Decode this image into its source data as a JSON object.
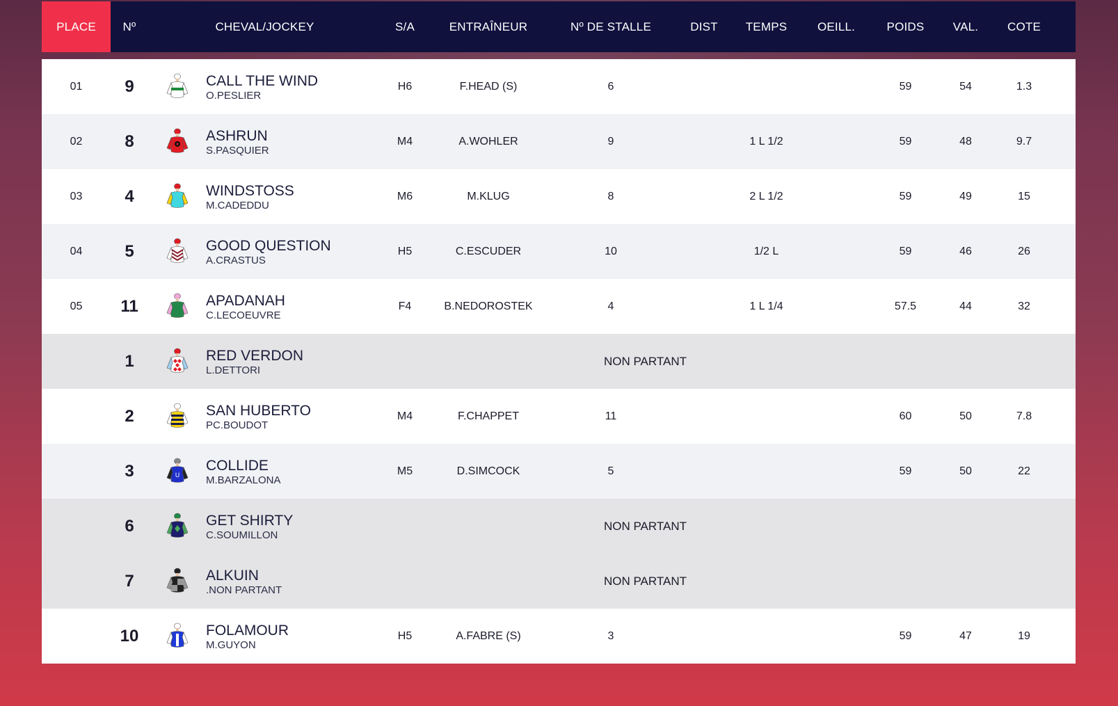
{
  "headers": {
    "place": "PLACE",
    "num": "Nº",
    "horse": "CHEVAL/JOCKEY",
    "sa": "S/A",
    "trainer": "ENTRAÎNEUR",
    "stall": "Nº DE STALLE",
    "dist": "DIST",
    "temps": "TEMPS",
    "oeill": "OEILL.",
    "poids": "POIDS",
    "val": "VAL.",
    "cote": "COTE"
  },
  "colors": {
    "header_bg": "#10113d",
    "place_accent": "#f0304a",
    "non_partant_bg": "#e4e4e6"
  },
  "rows": [
    {
      "place": "01",
      "num": "9",
      "horse": "CALL THE WIND",
      "jockey": "O.PESLIER",
      "sa": "H6",
      "trainer": "F.HEAD (S)",
      "stall": "6",
      "temps": "",
      "poids": "59",
      "val": "54",
      "cote": "1.3",
      "silk": "white-green-sash"
    },
    {
      "place": "02",
      "num": "8",
      "horse": "ASHRUN",
      "jockey": "S.PASQUIER",
      "sa": "M4",
      "trainer": "A.WOHLER",
      "stall": "9",
      "temps": "1 L 1/2",
      "poids": "59",
      "val": "48",
      "cote": "9.7",
      "silk": "red-black-dots"
    },
    {
      "place": "03",
      "num": "4",
      "horse": "WINDSTOSS",
      "jockey": "M.CADEDDU",
      "sa": "M6",
      "trainer": "M.KLUG",
      "stall": "8",
      "temps": "2 L 1/2",
      "poids": "59",
      "val": "49",
      "cote": "15",
      "silk": "cyan-yellow"
    },
    {
      "place": "04",
      "num": "5",
      "horse": "GOOD QUESTION",
      "jockey": "A.CRASTUS",
      "sa": "H5",
      "trainer": "C.ESCUDER",
      "stall": "10",
      "temps": "1/2 L",
      "poids": "59",
      "val": "46",
      "cote": "26",
      "silk": "maroon-chevrons"
    },
    {
      "place": "05",
      "num": "11",
      "horse": "APADANAH",
      "jockey": "C.LECOEUVRE",
      "sa": "F4",
      "trainer": "B.NEDOROSTEK",
      "stall": "4",
      "temps": "1 L 1/4",
      "poids": "57.5",
      "val": "44",
      "cote": "32",
      "silk": "green-pink"
    }
  ],
  "others": [
    {
      "num": "1",
      "horse": "RED VERDON",
      "jockey": "L.DETTORI",
      "status": "NON PARTANT",
      "silk": "red-diamonds"
    },
    {
      "num": "2",
      "horse": "SAN HUBERTO",
      "jockey": "PC.BOUDOT",
      "sa": "M4",
      "trainer": "F.CHAPPET",
      "stall": "11",
      "poids": "60",
      "val": "50",
      "cote": "7.8",
      "silk": "yellow-navy-hoops"
    },
    {
      "num": "3",
      "horse": "COLLIDE",
      "jockey": "M.BARZALONA",
      "sa": "M5",
      "trainer": "D.SIMCOCK",
      "stall": "5",
      "poids": "59",
      "val": "50",
      "cote": "22",
      "silk": "blue-check-sleeves"
    },
    {
      "num": "6",
      "horse": "GET SHIRTY",
      "jockey": "C.SOUMILLON",
      "status": "NON PARTANT",
      "silk": "navy-green-diamond"
    },
    {
      "num": "7",
      "horse": "ALKUIN",
      "jockey": ".NON PARTANT",
      "status": "NON PARTANT",
      "silk": "black-grey-quarters"
    },
    {
      "num": "10",
      "horse": "FOLAMOUR",
      "jockey": "M.GUYON",
      "sa": "H5",
      "trainer": "A.FABRE (S)",
      "stall": "3",
      "poids": "59",
      "val": "47",
      "cote": "19",
      "silk": "royal-blue-white"
    }
  ]
}
